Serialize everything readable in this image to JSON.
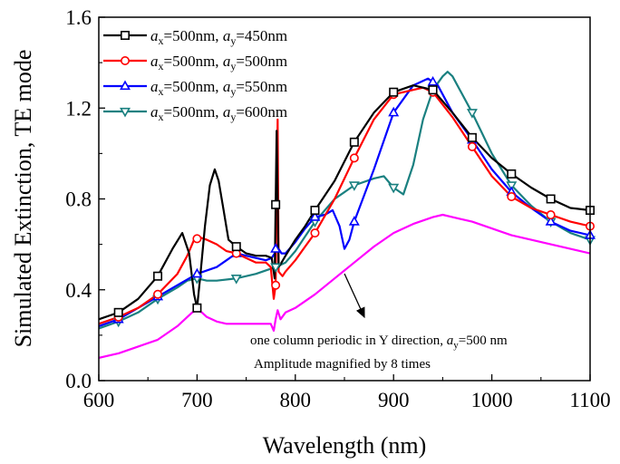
{
  "chart_data": {
    "type": "line",
    "xlabel": "Wavelength (nm)",
    "ylabel": "Simulated Extinction, TE mode",
    "xlim": [
      600,
      1100
    ],
    "ylim": [
      0.0,
      1.6
    ],
    "xticks": [
      600,
      700,
      800,
      900,
      1000,
      1100
    ],
    "xtick_labels": [
      "600",
      "700",
      "800",
      "900",
      "1000",
      "1100"
    ],
    "yticks": [
      0.0,
      0.4,
      0.8,
      1.2,
      1.6
    ],
    "ytick_labels": [
      "0.0",
      "0.4",
      "0.8",
      "1.2",
      "1.6"
    ],
    "grid": false,
    "legend_position": "top-left",
    "series": [
      {
        "name": "ax=500nm, ay=450nm",
        "legend": {
          "p1": "a",
          "s1": "x",
          "mid": "=500nm, ",
          "p2": "a",
          "s2": "y",
          "end": "=450nm"
        },
        "color": "#000000",
        "marker": "square",
        "x": [
          600,
          620,
          640,
          660,
          675,
          685,
          692,
          697,
          700,
          703,
          708,
          713,
          718,
          722,
          727,
          732,
          740,
          750,
          760,
          770,
          776,
          779,
          781,
          783,
          786,
          790,
          800,
          810,
          820,
          840,
          860,
          880,
          900,
          920,
          940,
          960,
          980,
          1000,
          1020,
          1040,
          1060,
          1080,
          1100
        ],
        "y": [
          0.27,
          0.3,
          0.36,
          0.46,
          0.58,
          0.65,
          0.56,
          0.38,
          0.32,
          0.45,
          0.68,
          0.86,
          0.93,
          0.88,
          0.75,
          0.62,
          0.59,
          0.56,
          0.55,
          0.55,
          0.54,
          0.45,
          1.1,
          0.5,
          0.52,
          0.55,
          0.62,
          0.68,
          0.75,
          0.88,
          1.05,
          1.18,
          1.27,
          1.3,
          1.28,
          1.18,
          1.07,
          0.98,
          0.91,
          0.85,
          0.8,
          0.76,
          0.75
        ],
        "marker_x": [
          620,
          660,
          700,
          740,
          780,
          820,
          860,
          900,
          940,
          980,
          1020,
          1060,
          1100
        ]
      },
      {
        "name": "ax=500nm, ay=500nm",
        "legend": {
          "p1": "a",
          "s1": "x",
          "mid": "=500nm, ",
          "p2": "a",
          "s2": "y",
          "end": "=500nm"
        },
        "color": "#ff0000",
        "marker": "circle",
        "x": [
          600,
          620,
          640,
          660,
          680,
          690,
          697,
          703,
          710,
          720,
          730,
          740,
          750,
          760,
          770,
          775,
          778,
          780,
          782,
          783,
          785,
          787,
          790,
          800,
          810,
          820,
          840,
          860,
          880,
          900,
          920,
          930,
          940,
          960,
          980,
          1000,
          1020,
          1040,
          1060,
          1080,
          1100
        ],
        "y": [
          0.25,
          0.28,
          0.32,
          0.38,
          0.47,
          0.55,
          0.62,
          0.63,
          0.62,
          0.6,
          0.57,
          0.56,
          0.54,
          0.52,
          0.52,
          0.5,
          0.36,
          0.42,
          1.15,
          0.48,
          0.47,
          0.46,
          0.48,
          0.53,
          0.59,
          0.65,
          0.8,
          0.98,
          1.15,
          1.26,
          1.28,
          1.29,
          1.27,
          1.16,
          1.03,
          0.9,
          0.81,
          0.76,
          0.73,
          0.7,
          0.68
        ],
        "marker_x": [
          620,
          660,
          700,
          740,
          780,
          820,
          860,
          900,
          940,
          980,
          1020,
          1060,
          1100
        ]
      },
      {
        "name": "ax=500nm, ay=550nm",
        "legend": {
          "p1": "a",
          "s1": "x",
          "mid": "=500nm, ",
          "p2": "a",
          "s2": "y",
          "end": "=550nm"
        },
        "color": "#0000ff",
        "marker": "triangle-up",
        "x": [
          600,
          620,
          640,
          660,
          680,
          700,
          720,
          740,
          760,
          770,
          776,
          779,
          781,
          783,
          786,
          790,
          800,
          810,
          820,
          830,
          838,
          845,
          850,
          855,
          860,
          880,
          900,
          920,
          935,
          945,
          960,
          980,
          1000,
          1020,
          1040,
          1060,
          1080,
          1100
        ],
        "y": [
          0.24,
          0.27,
          0.32,
          0.37,
          0.42,
          0.47,
          0.5,
          0.56,
          0.54,
          0.53,
          0.54,
          0.56,
          0.6,
          0.58,
          0.56,
          0.56,
          0.61,
          0.67,
          0.72,
          0.73,
          0.75,
          0.68,
          0.58,
          0.62,
          0.7,
          0.93,
          1.18,
          1.3,
          1.33,
          1.3,
          1.18,
          1.06,
          0.93,
          0.83,
          0.76,
          0.7,
          0.66,
          0.64
        ],
        "marker_x": [
          620,
          660,
          700,
          740,
          780,
          820,
          860,
          900,
          940,
          980,
          1020,
          1060,
          1100
        ]
      },
      {
        "name": "ax=500nm, ay=600nm",
        "legend": {
          "p1": "a",
          "s1": "x",
          "mid": "=500nm, ",
          "p2": "a",
          "s2": "y",
          "end": "=600nm"
        },
        "color": "#1a8080",
        "marker": "triangle-down",
        "x": [
          600,
          620,
          640,
          660,
          680,
          690,
          700,
          710,
          720,
          740,
          760,
          780,
          790,
          800,
          820,
          840,
          860,
          880,
          890,
          900,
          910,
          920,
          930,
          940,
          950,
          955,
          960,
          980,
          1000,
          1020,
          1040,
          1060,
          1080,
          1100
        ],
        "y": [
          0.23,
          0.26,
          0.3,
          0.36,
          0.41,
          0.44,
          0.45,
          0.44,
          0.44,
          0.45,
          0.47,
          0.5,
          0.52,
          0.57,
          0.7,
          0.8,
          0.86,
          0.89,
          0.9,
          0.85,
          0.82,
          0.95,
          1.15,
          1.28,
          1.34,
          1.36,
          1.34,
          1.18,
          1.0,
          0.86,
          0.77,
          0.7,
          0.65,
          0.62
        ],
        "marker_x": [
          620,
          660,
          700,
          740,
          780,
          820,
          860,
          900,
          940,
          980,
          1020,
          1060,
          1100
        ]
      },
      {
        "name": "one column periodic in Y direction",
        "color": "#ff00ff",
        "marker": "none",
        "x": [
          600,
          620,
          640,
          660,
          680,
          690,
          695,
          700,
          705,
          710,
          720,
          730,
          740,
          760,
          775,
          778,
          780,
          782,
          785,
          790,
          800,
          820,
          840,
          860,
          880,
          900,
          920,
          940,
          950,
          960,
          980,
          1000,
          1020,
          1040,
          1060,
          1080,
          1100
        ],
        "y": [
          0.1,
          0.12,
          0.15,
          0.18,
          0.24,
          0.28,
          0.3,
          0.31,
          0.3,
          0.28,
          0.26,
          0.25,
          0.25,
          0.25,
          0.25,
          0.22,
          0.27,
          0.31,
          0.27,
          0.3,
          0.32,
          0.38,
          0.45,
          0.52,
          0.59,
          0.65,
          0.69,
          0.72,
          0.73,
          0.72,
          0.7,
          0.67,
          0.64,
          0.62,
          0.6,
          0.58,
          0.56
        ]
      }
    ],
    "annotations": {
      "line1_prefix": "one column periodic in Y direction, ",
      "line1_var": "a",
      "line1_sub": "y",
      "line1_suffix": "=500 nm",
      "line2": "Amplitude magnified by 8 times"
    }
  }
}
